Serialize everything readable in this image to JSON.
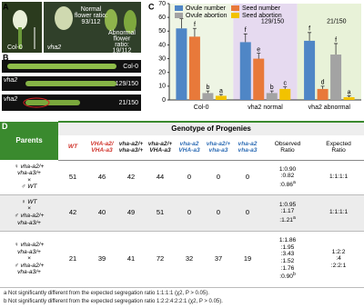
{
  "panel_a": {
    "label": "A",
    "genotypes": [
      "Col-0",
      "vha2"
    ],
    "normal_ratio": [
      "Normal",
      "flower ratio:",
      "93/112"
    ],
    "abnormal_ratio": [
      "Abnormal",
      "flower",
      "ratio:",
      "19/112"
    ]
  },
  "panel_b": {
    "label": "B",
    "rows": [
      {
        "genotype": "Col-0"
      },
      {
        "genotype": "vha2",
        "ratio": "129/150"
      },
      {
        "genotype": "vha2",
        "ratio": "21/150"
      }
    ]
  },
  "chart_data": {
    "type": "bar",
    "label": "C",
    "categories": [
      "Col-0",
      "vha2 normal",
      "vha2 abnormal"
    ],
    "category_colors": [
      "#eef5e4",
      "#e6daf0",
      "#e8f2d8"
    ],
    "series": [
      {
        "name": "Ovule number",
        "color": "#4f86c6",
        "values": [
          52,
          42,
          43
        ],
        "errors": [
          7,
          6,
          6
        ],
        "labels": [
          "g",
          "f",
          "f"
        ]
      },
      {
        "name": "Seed number",
        "color": "#e8793a",
        "values": [
          46,
          30,
          8
        ],
        "errors": [
          6,
          4,
          2
        ],
        "labels": [
          "f",
          "e",
          "d"
        ]
      },
      {
        "name": "Ovule abortion",
        "color": "#a3a3a3",
        "values": [
          5,
          5,
          33
        ],
        "errors": [
          1.5,
          1.5,
          8
        ],
        "labels": [
          "b",
          "b",
          "f"
        ]
      },
      {
        "name": "Seed abortion",
        "color": "#f2c200",
        "values": [
          3,
          8,
          2
        ],
        "errors": [
          1,
          1.5,
          1
        ],
        "labels": [
          "a",
          "c",
          "a"
        ]
      }
    ],
    "annotations": [
      "129/150",
      "21/150"
    ],
    "ylim": [
      0,
      70
    ],
    "yticks": [
      0,
      10,
      20,
      30,
      40,
      50,
      60,
      70
    ]
  },
  "table": {
    "label": "D",
    "parents_header": "Parents",
    "group_header": "Genotype of Progenies",
    "columns": [
      {
        "lines": [
          "WT"
        ],
        "color": "#d0342c"
      },
      {
        "lines": [
          "VHA-a2/",
          "VHA-a3"
        ],
        "color": "#d0342c"
      },
      {
        "lines": [
          "vha-a2/+",
          "vha-a3/+"
        ],
        "color": "#222222"
      },
      {
        "lines": [
          "vha-a2/+",
          "VHA-a3"
        ],
        "color": "#222222"
      },
      {
        "lines": [
          "vha-a2",
          "VHA-a3"
        ],
        "color": "#2f6db5"
      },
      {
        "lines": [
          "vha-a2/+",
          "vha-a3"
        ],
        "color": "#2f6db5"
      },
      {
        "lines": [
          "vha-a2",
          "vha-a3"
        ],
        "color": "#2f6db5"
      }
    ],
    "observed_header": [
      "Observed",
      "Ratio"
    ],
    "expected_header": [
      "Expected",
      "Ratio"
    ],
    "rows": [
      {
        "parents": [
          "♀ vha-a2/+",
          "vha-a3/+",
          "×",
          "♂ WT"
        ],
        "counts": [
          51,
          46,
          42,
          44,
          0,
          0,
          0
        ],
        "observed": [
          "1:0.90",
          ":0.82",
          ":0.86"
        ],
        "note": "a",
        "expected": [
          "1:1:1:1"
        ]
      },
      {
        "parents": [
          "♀ WT",
          "×",
          "♂ vha-a2/+",
          "vha-a3/+"
        ],
        "counts": [
          42,
          40,
          49,
          51,
          0,
          0,
          0
        ],
        "observed": [
          "1:0.95",
          ":1.17",
          ":1.21"
        ],
        "note": "a",
        "expected": [
          "1:1:1:1"
        ]
      },
      {
        "parents": [
          "♀ vha-a2/+",
          "vha-a3/+",
          "×",
          "♂ vha-a2/+",
          "vha-a3/+"
        ],
        "counts": [
          21,
          39,
          41,
          72,
          32,
          37,
          19
        ],
        "observed": [
          "1:1.86",
          ":1.95",
          ":3.43",
          ":1.52",
          ":1.76",
          ":0.90"
        ],
        "note": "b",
        "expected": [
          "1:2:2",
          ":4",
          ":2:2:1"
        ]
      }
    ],
    "footnotes": [
      "a Not significantly different from the expected segregation ratio 1:1:1:1 (χ2,  P > 0.05).",
      "b Not significantly different from the expected segregation ratio 1:2:2:4:2:2:1 (χ2,  P > 0.05)."
    ]
  }
}
